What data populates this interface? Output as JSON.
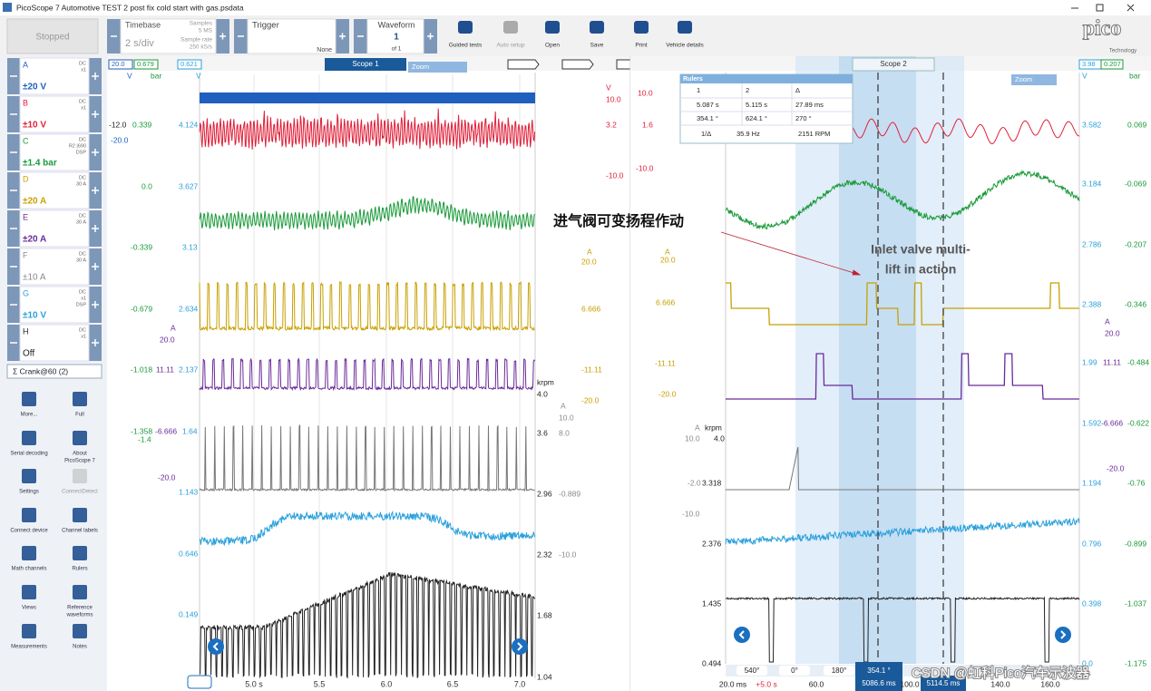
{
  "window": {
    "title": "PicoScope 7 Automotive TEST 2 post fix cold start with gas.psdata"
  },
  "toolbar": {
    "run_state": "Stopped",
    "timebase": {
      "label": "Timebase",
      "value": "2 s/div",
      "samples_label": "Samples",
      "samples": "5 MS",
      "rate_label": "Sample rate",
      "rate": "250 kS/s"
    },
    "trigger": {
      "label": "Trigger",
      "mode": "None"
    },
    "waveform": {
      "label": "Waveform",
      "index": "1",
      "count": "of 1"
    },
    "buttons": [
      "Guided tests",
      "Auto setup",
      "Open",
      "Save",
      "Print",
      "Vehicle details"
    ],
    "logo": "pico",
    "logo_sub": "Technology"
  },
  "channels": [
    {
      "name": "A",
      "info": [
        "DC",
        "x1"
      ],
      "range": "±20 V"
    },
    {
      "name": "B",
      "info": [
        "DC",
        "x1"
      ],
      "range": "±10 V"
    },
    {
      "name": "C",
      "info": [
        "DC",
        "R2 |690",
        "DSP"
      ],
      "range": "±1.4 bar"
    },
    {
      "name": "D",
      "info": [
        "DC",
        "30 A"
      ],
      "range": "±20 A"
    },
    {
      "name": "E",
      "info": [
        "DC",
        "30 A"
      ],
      "range": "±20 A"
    },
    {
      "name": "F",
      "info": [
        "DC",
        "30 A"
      ],
      "range": "±10 A"
    },
    {
      "name": "G",
      "info": [
        "DC",
        "x1",
        "DSP"
      ],
      "range": "±10 V"
    },
    {
      "name": "H",
      "info": [
        "DC",
        "x1"
      ],
      "range": "Off"
    }
  ],
  "math_channel": "Σ Crank@60 (2)",
  "tools": [
    [
      "More..."
    ],
    [
      "Full"
    ],
    [
      "Serial decoding"
    ],
    [
      "About",
      "PicoScope 7"
    ],
    [
      "Settings"
    ],
    [
      "ConnectDetect"
    ],
    [
      "Connect device"
    ],
    [
      "Channel labels"
    ],
    [
      "Math channels"
    ],
    [
      "Rulers"
    ],
    [
      "Views"
    ],
    [
      "Reference",
      "waveforms"
    ],
    [
      "Measurements"
    ],
    [
      "Notes"
    ]
  ],
  "scope1": {
    "tab": "Scope 1",
    "zoom": "Zoom",
    "header_chips": [
      "20.0",
      "0.679",
      "0.621"
    ],
    "axis_labels": [
      "V",
      "bar",
      "V",
      "-12.0",
      "0.339",
      "-20.0",
      "4.124",
      "0.0",
      "3.627",
      "-0.339",
      "3.13",
      "-0.679",
      "2.634",
      "A",
      "20.0",
      "-1.018",
      "11.11",
      "2.137",
      "-1.358",
      "-1.4",
      "-6.666",
      "1.64",
      "-20.0",
      "1.143",
      "0.646",
      "0.149",
      "V",
      "10.0",
      "3.2",
      "-10.0",
      "A",
      "20.0",
      "6.666",
      "-11.11",
      "-20.0",
      "krpm",
      "4.0",
      "A",
      "10.0",
      "3.6",
      "8.0",
      "2.96",
      "-0.889",
      "2.32",
      "-10.0",
      "1.68",
      "1.04"
    ],
    "time_ticks": [
      "5.0 s",
      "5.5",
      "6.0",
      "6.5",
      "7.0"
    ]
  },
  "scope2": {
    "tab": "Scope 2",
    "zoom": "Zoom",
    "header_chips": [
      "3.98",
      "0.207"
    ],
    "axis_labels": [
      "10.0",
      "1.6",
      "-10.0",
      "A",
      "20.0",
      "6.666",
      "-11.11",
      "-20.0",
      "A",
      "krpm",
      "10.0",
      "4.0",
      "-2.0",
      "3.318",
      "-10.0",
      "2.376",
      "1.435",
      "0.494",
      "V",
      "bar",
      "3.582",
      "0.069",
      "3.184",
      "-0.069",
      "2.786",
      "-0.207",
      "2.388",
      "-0.346",
      "A",
      "20.0",
      "1.99",
      "11.11",
      "-0.484",
      "1.592",
      "-6.666",
      "-0.622",
      "-20.0",
      "1.194",
      "-0.76",
      "0.796",
      "-0.899",
      "0.398",
      "-1.037",
      "0.0",
      "-1.175"
    ],
    "rulers": {
      "title": "Rulers",
      "header": [
        "1",
        "2",
        "Δ"
      ],
      "rows": [
        [
          "5.087 s",
          "5.115 s",
          "27.89 ms"
        ],
        [
          "354.1 °",
          "624.1 °",
          "270 °"
        ]
      ],
      "freq_label": "1/Δ",
      "freq": "35.9 Hz",
      "rpm": "2151 RPM"
    },
    "angle_ticks": [
      "540°",
      "0°",
      "180°"
    ],
    "ruler_marks": [
      "354.1 °",
      "5086.6 ms",
      "5114.5 ms"
    ],
    "time_ticks": [
      "20.0 ms",
      "+5.0 s",
      "60.0",
      "100.0",
      "140.0",
      "160.0"
    ]
  },
  "annotations": {
    "chinese": "进气阀可变扬程作动",
    "english": [
      "Inlet valve multi-",
      "lift in action"
    ]
  },
  "watermark": "CSDN @虹科Pico汽车示波器"
}
